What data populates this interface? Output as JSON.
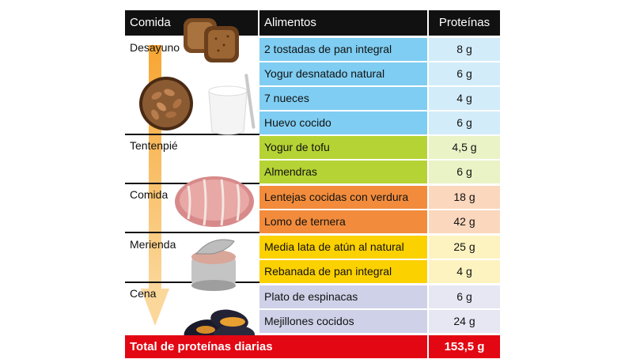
{
  "header": {
    "comida": "Comida",
    "alimentos": "Alimentos",
    "proteinas": "Proteínas"
  },
  "meals": [
    {
      "label": "Desayuno"
    },
    {
      "label": "Tentenpié"
    },
    {
      "label": "Comida"
    },
    {
      "label": "Merienda"
    },
    {
      "label": "Cena"
    }
  ],
  "rows": [
    {
      "food": "2 tostadas de pan integral",
      "protein": "8 g"
    },
    {
      "food": "Yogur desnatado natural",
      "protein": "6 g"
    },
    {
      "food": "7 nueces",
      "protein": "4 g"
    },
    {
      "food": "Huevo cocido",
      "protein": "6 g"
    },
    {
      "food": "Yogur de tofu",
      "protein": "4,5 g"
    },
    {
      "food": "Almendras",
      "protein": "6 g"
    },
    {
      "food": "Lentejas cocidas con verdura",
      "protein": "18 g"
    },
    {
      "food": "Lomo de ternera",
      "protein": "42 g"
    },
    {
      "food": "Media lata de atún al natural",
      "protein": "25 g"
    },
    {
      "food": "Rebanada de pan integral",
      "protein": "4 g"
    },
    {
      "food": "Plato de espinacas",
      "protein": "6 g"
    },
    {
      "food": "Mejillones cocidos",
      "protein": "24 g"
    }
  ],
  "total": {
    "label": "Total de proteínas diarias",
    "value": "153,5 g"
  },
  "colors": {
    "desayuno_food": "#7fcdf2",
    "desayuno_prot": "#d3ecfa",
    "tentenpie_food": "#b5d334",
    "tentenpie_prot": "#e9f3c6",
    "comida_food": "#f28c3c",
    "comida_prot": "#fbd7bd",
    "merienda_food": "#fcd100",
    "merienda_prot": "#fdf3c0",
    "cena_food": "#cfd1e8",
    "cena_prot": "#e6e7f3",
    "total": "#e30613",
    "arrow": "#f59a22"
  }
}
